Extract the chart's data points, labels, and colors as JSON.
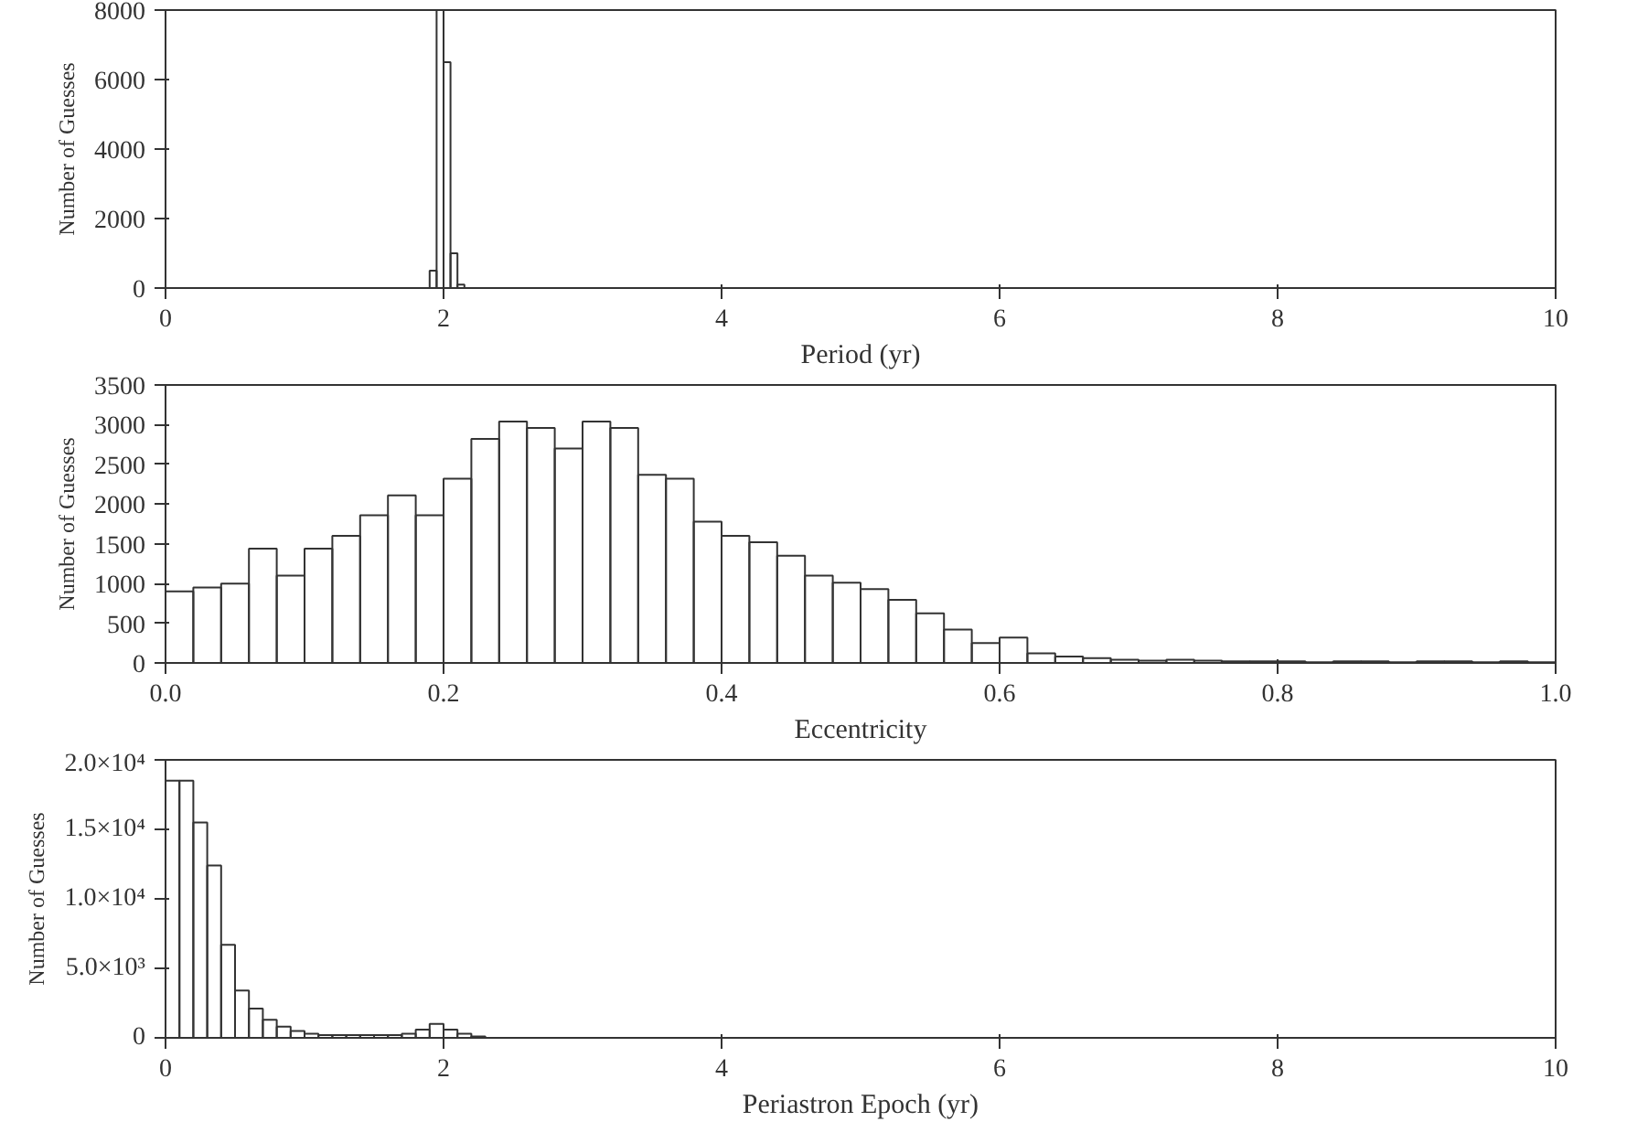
{
  "chart_data": [
    {
      "type": "histogram",
      "xlabel": "Period (yr)",
      "ylabel": "Number of Guesses",
      "color": "#333333",
      "bins": [
        1.9,
        1.95,
        2.0,
        2.05,
        2.1,
        2.15
      ],
      "values": [
        500,
        8000,
        6500,
        1000,
        100
      ],
      "xlim": [
        0,
        10
      ],
      "xticks": [
        0,
        2,
        4,
        6,
        8,
        10
      ],
      "ylim": [
        0,
        8000
      ],
      "yticks": [
        0,
        2000,
        4000,
        6000,
        8000
      ]
    },
    {
      "type": "histogram",
      "xlabel": "Eccentricity",
      "ylabel": "Number of Guesses",
      "color": "#333333",
      "bins": [
        0.0,
        0.02,
        0.04,
        0.06,
        0.08,
        0.1,
        0.12,
        0.14,
        0.16,
        0.18,
        0.2,
        0.22,
        0.24,
        0.26,
        0.28,
        0.3,
        0.32,
        0.34,
        0.36,
        0.38,
        0.4,
        0.42,
        0.44,
        0.46,
        0.48,
        0.5,
        0.52,
        0.54,
        0.56,
        0.58,
        0.6,
        0.62,
        0.64,
        0.66,
        0.68,
        0.7,
        0.72,
        0.74,
        0.76,
        0.78,
        0.8,
        0.82,
        0.84,
        0.86,
        0.88,
        0.9,
        0.92,
        0.94,
        0.96,
        0.98,
        1.0
      ],
      "values": [
        900,
        950,
        1000,
        1440,
        1100,
        1440,
        1600,
        1860,
        2110,
        1860,
        2320,
        2820,
        3040,
        2960,
        2700,
        3040,
        2960,
        2370,
        2320,
        1780,
        1600,
        1520,
        1350,
        1100,
        1010,
        930,
        795,
        625,
        420,
        250,
        320,
        120,
        80,
        60,
        40,
        30,
        40,
        30,
        20,
        20,
        20,
        10,
        20,
        20,
        10,
        20,
        20,
        10,
        20,
        10
      ],
      "xlim": [
        0,
        1
      ],
      "xticks": [
        {
          "value": 0,
          "label": "0.0"
        },
        0.2,
        0.4,
        0.6,
        0.8,
        {
          "value": 1,
          "label": "1.0"
        }
      ],
      "ylim": [
        0,
        3500
      ],
      "yticks": [
        0,
        500,
        1000,
        1500,
        2000,
        2500,
        3000,
        3500
      ]
    },
    {
      "type": "histogram",
      "xlabel": "Periastron Epoch (yr)",
      "ylabel": "Number of Guesses",
      "color": "#333333",
      "bins": [
        0.0,
        0.1,
        0.2,
        0.3,
        0.4,
        0.5,
        0.6,
        0.7,
        0.8,
        0.9,
        1.0,
        1.1,
        1.2,
        1.3,
        1.4,
        1.5,
        1.6,
        1.7,
        1.8,
        1.9,
        2.0,
        2.1,
        2.2,
        2.3
      ],
      "values": [
        18500,
        18500,
        15500,
        12400,
        6700,
        3400,
        2100,
        1300,
        800,
        500,
        300,
        200,
        200,
        200,
        200,
        200,
        200,
        300,
        600,
        1000,
        600,
        300,
        100
      ],
      "xlim": [
        0,
        10
      ],
      "xticks": [
        0,
        2,
        4,
        6,
        8,
        10
      ],
      "ylim": [
        0,
        20000
      ],
      "yticks": [
        0,
        {
          "value": 5000,
          "label": "5.0×10³"
        },
        {
          "value": 10000,
          "label": "1.0×10⁴"
        },
        {
          "value": 15000,
          "label": "1.5×10⁴"
        },
        {
          "value": 20000,
          "label": "2.0×10⁴"
        }
      ]
    }
  ]
}
